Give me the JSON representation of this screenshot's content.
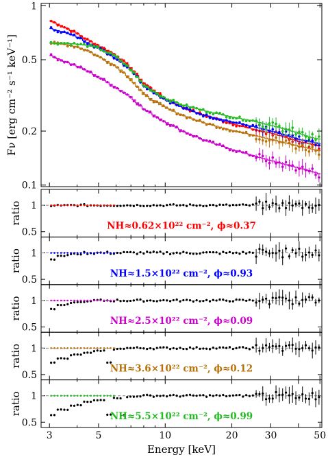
{
  "chart_data": {
    "type": "scatter",
    "x_scale": "log",
    "y_scale": "log",
    "xlabel": "Energy [keV]",
    "x_ticks": [
      3,
      5,
      10,
      20,
      30,
      40,
      50
    ],
    "x_tick_labels": [
      "3",
      "5",
      "10",
      "20",
      "30",
      "",
      "50"
    ],
    "xlim": [
      2.75,
      51
    ],
    "top_panel": {
      "ylabel": "Fν [erg cm⁻² s⁻¹ keV⁻¹]",
      "ylim": [
        0.098,
        1.03
      ],
      "y_ticks": [
        0.1,
        0.2,
        0.5,
        1
      ],
      "y_tick_labels": [
        "0.1",
        "0.2",
        "0.5",
        "1"
      ]
    },
    "series": [
      {
        "name": "",
        "color": "#ff0000",
        "x": [
          3.0,
          3.5,
          4.0,
          4.5,
          5.0,
          6.0,
          7.0,
          8.0,
          10.0,
          12.0,
          15.0,
          20.0,
          25.0,
          30.0,
          35.0,
          40.0,
          45.0,
          50.0
        ],
        "y": [
          0.83,
          0.76,
          0.7,
          0.64,
          0.6,
          0.53,
          0.45,
          0.37,
          0.305,
          0.272,
          0.245,
          0.22,
          0.205,
          0.195,
          0.185,
          0.175,
          0.17,
          0.165
        ],
        "ratio_label": "NH≈0.62×10²² cm⁻², ϕ≈0.37",
        "ratio_scatter": 0.02
      },
      {
        "name": "",
        "color": "#0000ff",
        "x": [
          3.0,
          3.5,
          4.0,
          4.5,
          5.0,
          6.0,
          7.0,
          8.0,
          10.0,
          12.0,
          15.0,
          20.0,
          25.0,
          30.0,
          35.0,
          40.0,
          45.0,
          50.0
        ],
        "y": [
          0.75,
          0.71,
          0.67,
          0.62,
          0.58,
          0.51,
          0.44,
          0.36,
          0.3,
          0.27,
          0.245,
          0.225,
          0.212,
          0.2,
          0.19,
          0.18,
          0.175,
          0.17
        ],
        "ratio_label": "NH≈1.5×10²² cm⁻², ϕ≈0.93",
        "ratio_scatter": 0.025
      },
      {
        "name": "",
        "color": "#cc00cc",
        "x": [
          3.0,
          3.5,
          4.0,
          4.5,
          5.0,
          6.0,
          7.0,
          8.0,
          10.0,
          12.0,
          15.0,
          20.0,
          25.0,
          30.0,
          35.0,
          40.0,
          45.0,
          50.0
        ],
        "y": [
          0.53,
          0.49,
          0.46,
          0.43,
          0.4,
          0.35,
          0.31,
          0.265,
          0.225,
          0.2,
          0.178,
          0.158,
          0.146,
          0.137,
          0.13,
          0.125,
          0.12,
          0.115
        ],
        "ratio_label": "NH≈2.5×10²² cm⁻², ϕ≈0.09",
        "ratio_scatter": 0.02
      },
      {
        "name": "",
        "color": "#b8720a",
        "x": [
          3.0,
          3.5,
          4.0,
          4.5,
          5.0,
          6.0,
          7.0,
          8.0,
          10.0,
          12.0,
          15.0,
          20.0,
          25.0,
          30.0,
          35.0,
          40.0,
          45.0,
          50.0
        ],
        "y": [
          0.62,
          0.61,
          0.59,
          0.56,
          0.52,
          0.46,
          0.39,
          0.32,
          0.27,
          0.245,
          0.222,
          0.202,
          0.19,
          0.18,
          0.172,
          0.165,
          0.16,
          0.155
        ],
        "ratio_label": "NH≈3.6×10²² cm⁻², ϕ≈0.12",
        "ratio_scatter": 0.02
      },
      {
        "name": "",
        "color": "#22bb22",
        "x": [
          3.0,
          3.5,
          4.0,
          4.5,
          5.0,
          6.0,
          7.0,
          8.0,
          10.0,
          12.0,
          15.0,
          20.0,
          25.0,
          30.0,
          35.0,
          40.0,
          45.0,
          50.0
        ],
        "y": [
          0.62,
          0.62,
          0.61,
          0.6,
          0.58,
          0.52,
          0.44,
          0.36,
          0.305,
          0.28,
          0.26,
          0.24,
          0.228,
          0.215,
          0.205,
          0.195,
          0.185,
          0.18
        ],
        "ratio_label": "NH≈5.5×10²² cm⁻², ϕ≈0.99",
        "ratio_scatter": 0.02
      }
    ],
    "ratio_panels": {
      "ylabel": "ratio",
      "ylim": [
        0.4,
        1.3
      ],
      "y_ticks": [
        0.5,
        1
      ],
      "y_tick_labels": [
        "0.5",
        "1"
      ],
      "reference": 1,
      "low_energy_dips": [
        {
          "x": [
            3.0,
            3.5
          ],
          "y": [
            0.99,
            1.0
          ]
        },
        {
          "x": [
            3.0,
            3.5,
            4.0
          ],
          "y": [
            0.88,
            0.95,
            0.98
          ]
        },
        {
          "x": [
            3.0,
            3.5,
            4.0,
            4.5
          ],
          "y": [
            0.84,
            0.92,
            0.96,
            0.98
          ]
        },
        {
          "x": [
            3.0,
            3.5,
            4.0,
            4.5,
            5.0,
            6.0
          ],
          "y": [
            0.72,
            0.8,
            0.87,
            0.92,
            0.95,
            0.98
          ]
        },
        {
          "x": [
            3.0,
            3.5,
            4.0,
            4.5,
            5.0,
            6.0,
            7.0
          ],
          "y": [
            0.64,
            0.74,
            0.82,
            0.88,
            0.92,
            0.96,
            0.98
          ]
        }
      ]
    }
  }
}
